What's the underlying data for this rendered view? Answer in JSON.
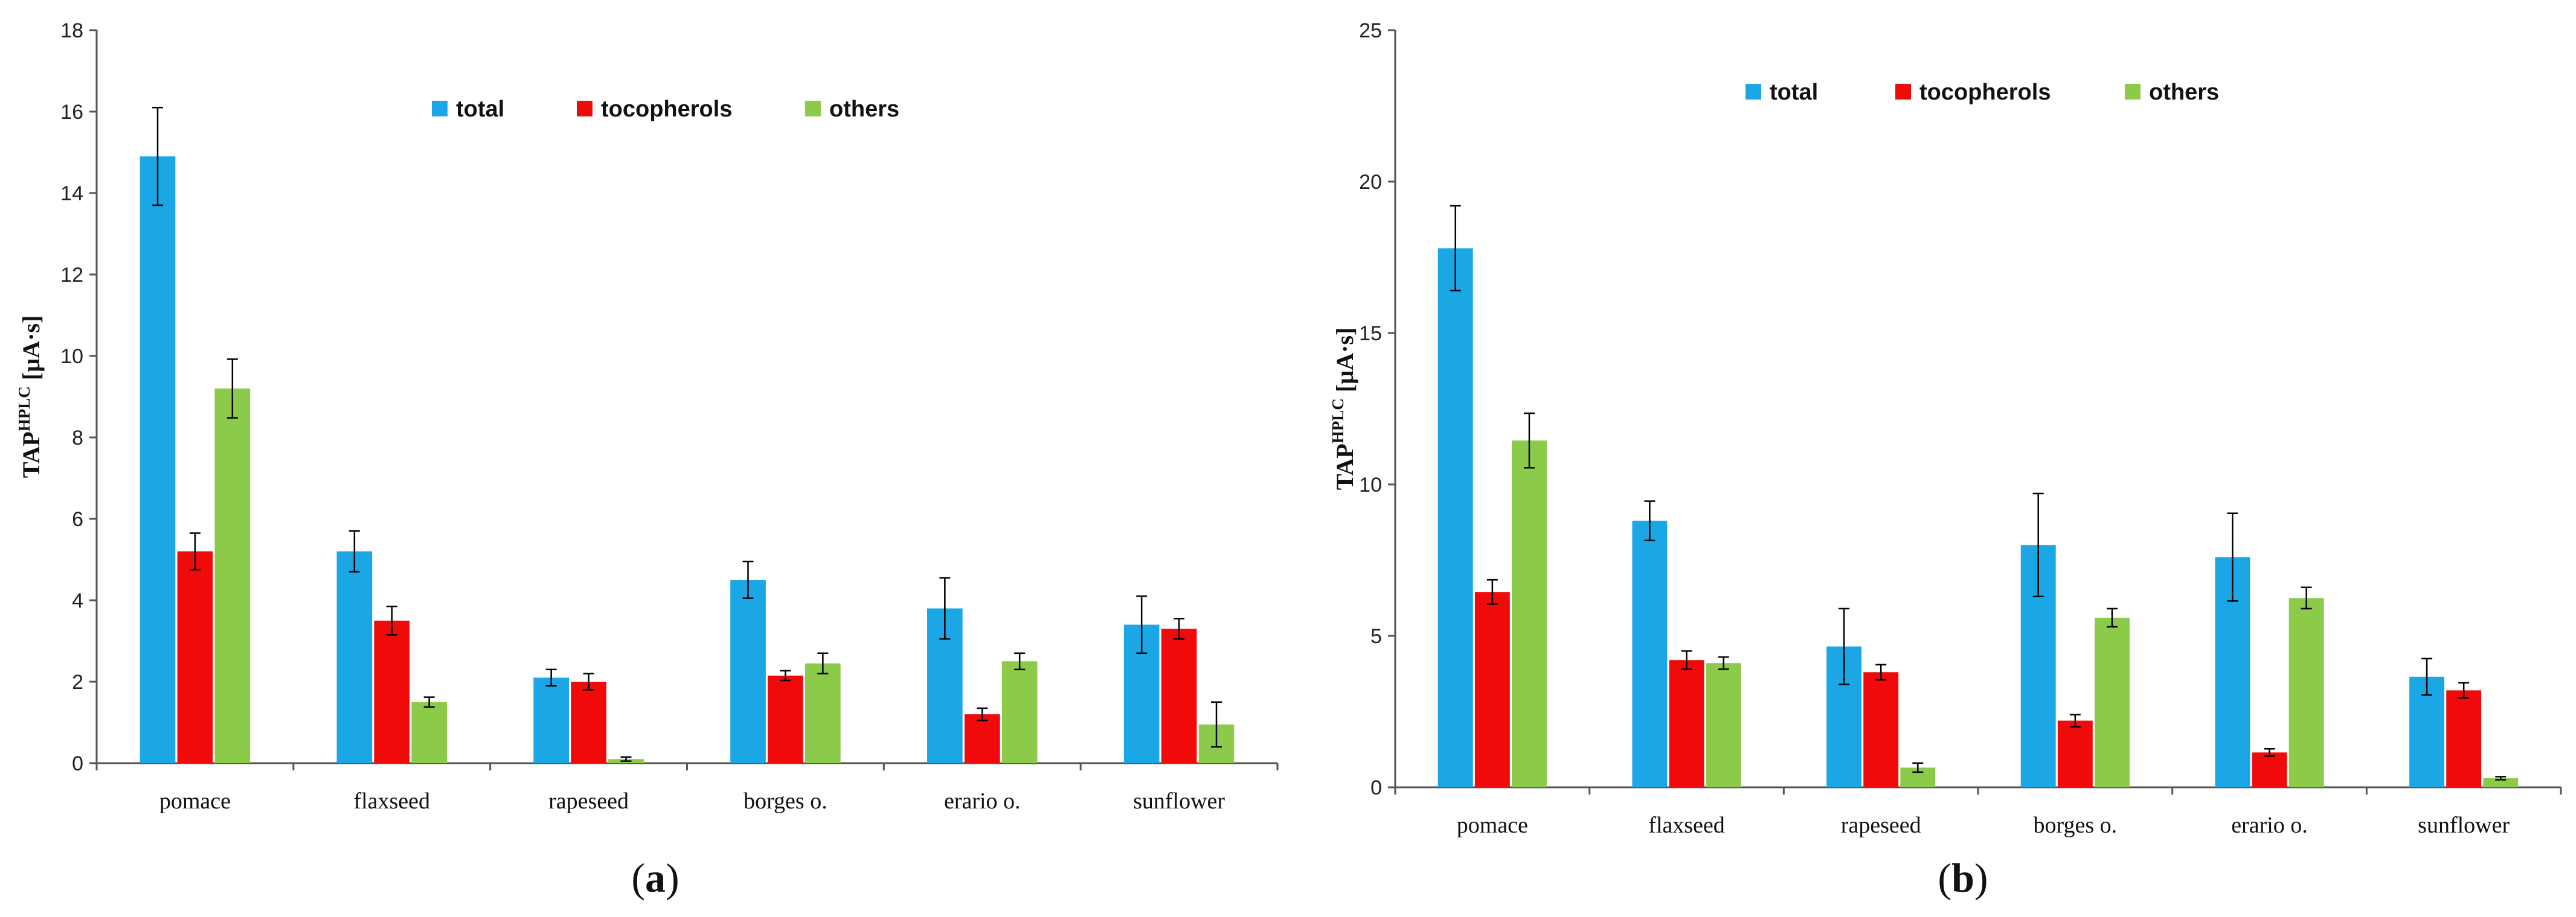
{
  "chart_data": [
    {
      "type": "bar",
      "panel_label": "a",
      "ylabel_main": "TAP",
      "ylabel_sup": "HPLC",
      "ylabel_unit": "[µA·s]",
      "ylim": [
        0,
        18
      ],
      "yticks": [
        "0",
        "2",
        "4",
        "6",
        "8",
        "10",
        "12",
        "14",
        "16",
        "18"
      ],
      "categories": [
        "pomace",
        "flaxseed",
        "rapeseed",
        "borges o.",
        "erario o.",
        "sunflower"
      ],
      "legend_position": "top-center",
      "series": [
        {
          "name": "total",
          "color": "#1BA6E6",
          "values": [
            14.9,
            5.2,
            2.1,
            4.5,
            3.8,
            3.4
          ],
          "errors": [
            1.2,
            0.5,
            0.2,
            0.45,
            0.75,
            0.7
          ]
        },
        {
          "name": "tocopherols",
          "color": "#F10A0A",
          "values": [
            5.2,
            3.5,
            2.0,
            2.15,
            1.2,
            3.3
          ],
          "errors": [
            0.45,
            0.35,
            0.2,
            0.12,
            0.15,
            0.25
          ]
        },
        {
          "name": "others",
          "color": "#8CCB4A",
          "values": [
            9.2,
            1.5,
            0.1,
            2.45,
            2.5,
            0.95
          ],
          "errors": [
            0.72,
            0.12,
            0.05,
            0.25,
            0.2,
            0.55
          ]
        }
      ]
    },
    {
      "type": "bar",
      "panel_label": "b",
      "ylabel_main": "TAP",
      "ylabel_sup": "HPLC",
      "ylabel_unit": "[µA·s]",
      "ylim": [
        0,
        25
      ],
      "yticks": [
        "0",
        "5",
        "10",
        "15",
        "20",
        "25"
      ],
      "categories": [
        "pomace",
        "flaxseed",
        "rapeseed",
        "borges o.",
        "erario o.",
        "sunflower"
      ],
      "legend_position": "top-center",
      "series": [
        {
          "name": "total",
          "color": "#1BA6E6",
          "values": [
            17.8,
            8.8,
            4.65,
            8.0,
            7.6,
            3.65
          ],
          "errors": [
            1.4,
            0.65,
            1.25,
            1.7,
            1.45,
            0.6
          ]
        },
        {
          "name": "tocopherols",
          "color": "#F10A0A",
          "values": [
            6.45,
            4.2,
            3.8,
            2.2,
            1.15,
            3.2
          ],
          "errors": [
            0.4,
            0.3,
            0.25,
            0.2,
            0.12,
            0.25
          ]
        },
        {
          "name": "others",
          "color": "#8CCB4A",
          "values": [
            11.45,
            4.1,
            0.65,
            5.6,
            6.25,
            0.3
          ],
          "errors": [
            0.9,
            0.2,
            0.15,
            0.3,
            0.35,
            0.05
          ]
        }
      ]
    }
  ]
}
